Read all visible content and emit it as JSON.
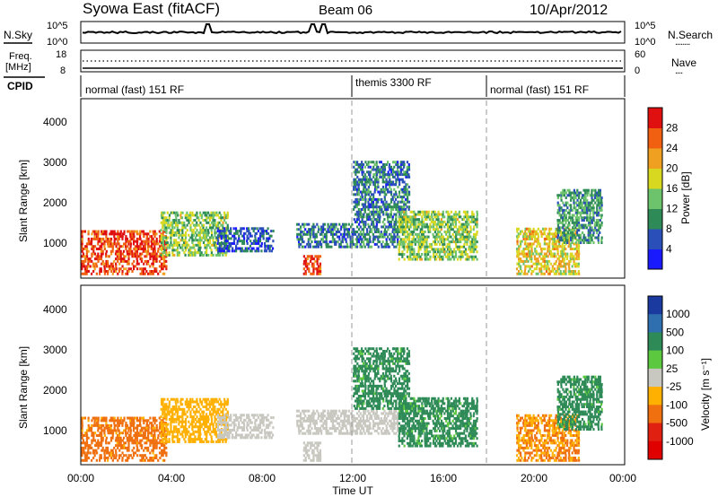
{
  "header": {
    "site": "Syowa East (fitACF)",
    "beam": "Beam 06",
    "date": "10/Apr/2012"
  },
  "noise_panel": {
    "left_label": "N.Sky",
    "right_label": "N.Search",
    "y_ticks": [
      "10^5",
      "10^0"
    ],
    "dotted_line_legend": "........"
  },
  "freq_panel": {
    "left_label_line1": "Freq.",
    "left_label_line2": "[MHz]",
    "y_ticks": [
      "18",
      "8"
    ],
    "right_label": "Nave",
    "right_ticks": [
      "60",
      "0"
    ],
    "dotted_line_legend": "...."
  },
  "cpid": {
    "label": "CPID",
    "segments": [
      {
        "name": "normal (fast) 151 RF",
        "start_hour": 0,
        "end_hour": 12
      },
      {
        "name": "themis 3300 RF",
        "start_hour": 12,
        "end_hour": 18
      },
      {
        "name": "normal (fast) 151 RF",
        "start_hour": 18,
        "end_hour": 24
      }
    ]
  },
  "x_axis": {
    "label": "Time UT",
    "ticks": [
      "00:00",
      "04:00",
      "08:00",
      "12:00",
      "16:00",
      "20:00",
      "00:00"
    ]
  },
  "panels": [
    {
      "id": "power",
      "y_label": "Slant Range [km]",
      "y_ticks": [
        "1000",
        "2000",
        "3000",
        "4000"
      ],
      "colorbar_label": "Power [dB]",
      "colorbar_ticks": [
        "4",
        "8",
        "12",
        "16",
        "20",
        "24",
        "28"
      ],
      "colorbar_colors": [
        "#1a1aff",
        "#2a4fb8",
        "#2e8b57",
        "#6cc36c",
        "#d8d820",
        "#f0a020",
        "#f06010",
        "#e01010"
      ]
    },
    {
      "id": "velocity",
      "y_label": "Slant Range [km]",
      "y_ticks": [
        "1000",
        "2000",
        "3000",
        "4000"
      ],
      "colorbar_label": "Velocity [m s⁻¹]",
      "colorbar_ticks": [
        "1000",
        "500",
        "100",
        "25",
        "-25",
        "-100",
        "-500",
        "-1000"
      ],
      "colorbar_colors": [
        "#1a3aa0",
        "#2f6fb0",
        "#2e8b57",
        "#5cc840",
        "#c8c8c0",
        "#ffb000",
        "#f07010",
        "#e02010",
        "#e00000"
      ]
    }
  ],
  "chart_data": {
    "type": "heatmap",
    "title": "Syowa East (fitACF)  Beam 06  10/Apr/2012",
    "xlabel": "Time UT",
    "ylabel": "Slant Range [km]",
    "xlim_hours": [
      0,
      24
    ],
    "ylim_km": [
      180,
      4500
    ],
    "x_tick_hours": [
      0,
      4,
      8,
      12,
      16,
      20,
      24
    ],
    "y_ticks_km": [
      1000,
      2000,
      3000,
      4000
    ],
    "mode_change_hours": [
      12,
      18
    ],
    "power_scale_db": [
      0,
      30
    ],
    "velocity_scale_ms": [
      -1000,
      1000
    ],
    "scatter_regions": [
      {
        "t0": 0.0,
        "t1": 3.8,
        "r0": 250,
        "r1": 1300,
        "power_db": 26,
        "velocity_ms": -150
      },
      {
        "t0": 3.5,
        "t1": 6.5,
        "r0": 700,
        "r1": 1800,
        "power_db": 14,
        "velocity_ms": -60
      },
      {
        "t0": 6.0,
        "t1": 8.5,
        "r0": 800,
        "r1": 1400,
        "power_db": 6,
        "velocity_ms": 0
      },
      {
        "t0": 9.8,
        "t1": 10.6,
        "r0": 250,
        "r1": 700,
        "power_db": 26,
        "velocity_ms": 0
      },
      {
        "t0": 9.5,
        "t1": 14.0,
        "r0": 900,
        "r1": 1500,
        "power_db": 8,
        "velocity_ms": 0
      },
      {
        "t0": 12.0,
        "t1": 14.5,
        "r0": 1500,
        "r1": 3000,
        "power_db": 8,
        "velocity_ms": 150
      },
      {
        "t0": 14.0,
        "t1": 17.5,
        "r0": 600,
        "r1": 1800,
        "power_db": 14,
        "velocity_ms": 150
      },
      {
        "t0": 19.2,
        "t1": 22.0,
        "r0": 250,
        "r1": 1400,
        "power_db": 18,
        "velocity_ms": -100
      },
      {
        "t0": 21.0,
        "t1": 23.0,
        "r0": 1000,
        "r1": 2300,
        "power_db": 10,
        "velocity_ms": 150
      }
    ]
  }
}
